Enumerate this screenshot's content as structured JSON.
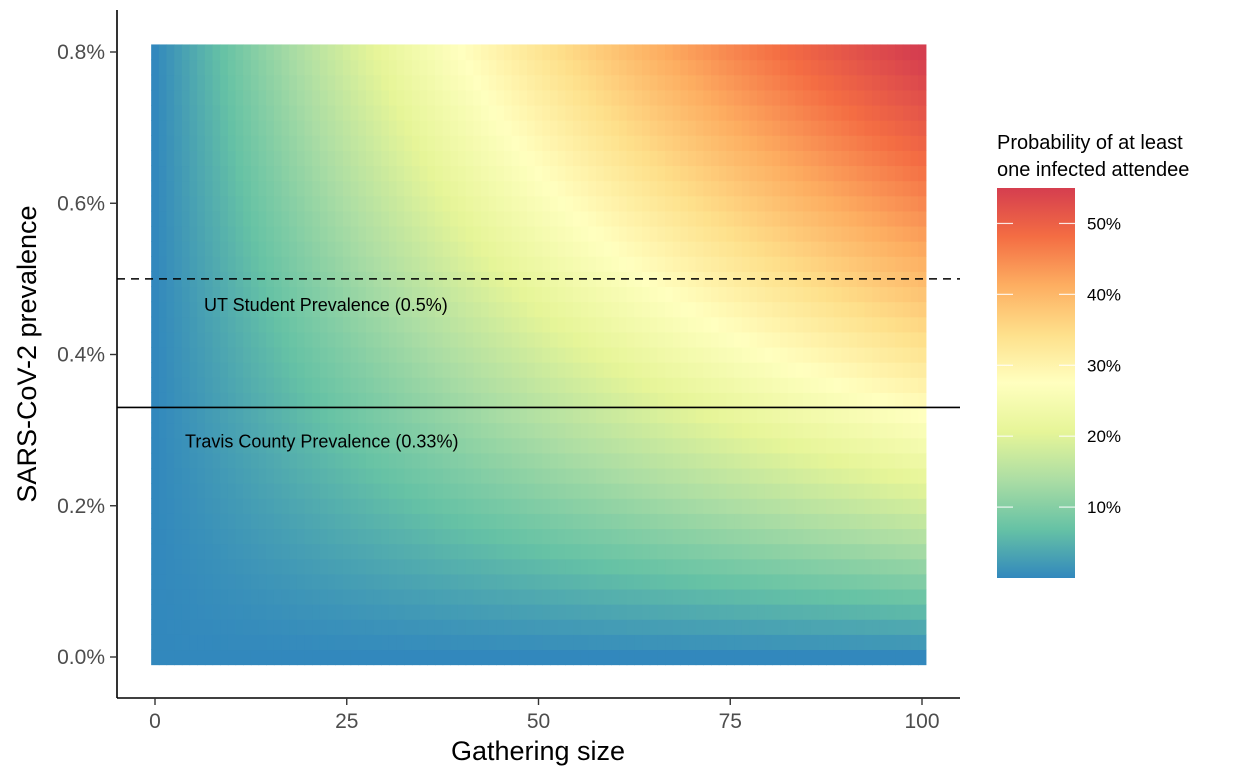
{
  "chart_data": {
    "type": "heatmap",
    "title": "",
    "xlabel": "Gathering size",
    "ylabel": "SARS-CoV-2 prevalence",
    "x_range": [
      0,
      100
    ],
    "y_range": [
      0,
      0.8
    ],
    "x_ticks": [
      {
        "value": 0,
        "label": "0"
      },
      {
        "value": 25,
        "label": "25"
      },
      {
        "value": 50,
        "label": "50"
      },
      {
        "value": 75,
        "label": "75"
      },
      {
        "value": 100,
        "label": "100"
      }
    ],
    "y_ticks": [
      {
        "value": 0.0,
        "label": "0.0%"
      },
      {
        "value": 0.2,
        "label": "0.2%"
      },
      {
        "value": 0.4,
        "label": "0.4%"
      },
      {
        "value": 0.6,
        "label": "0.6%"
      },
      {
        "value": 0.8,
        "label": "0.8%"
      }
    ],
    "z_formula": "1 - (1 - prevalence/100)^gathering_size",
    "grid": false,
    "colorscale": [
      "#3288bd",
      "#66c2a5",
      "#abdda4",
      "#e6f598",
      "#ffffbf",
      "#fee08b",
      "#fdae61",
      "#f46d43",
      "#d53e4f"
    ],
    "color_range": [
      0,
      0.55
    ],
    "legend": {
      "title_line1": "Probability of at least",
      "title_line2": "one infected attendee",
      "position": "right",
      "ticks": [
        {
          "value": 0.1,
          "label": "10%"
        },
        {
          "value": 0.2,
          "label": "20%"
        },
        {
          "value": 0.3,
          "label": "30%"
        },
        {
          "value": 0.4,
          "label": "40%"
        },
        {
          "value": 0.5,
          "label": "50%"
        }
      ]
    },
    "reference_lines": [
      {
        "y": 0.5,
        "style": "dashed",
        "label": "UT Student Prevalence (0.5%)"
      },
      {
        "y": 0.33,
        "style": "solid",
        "label": "Travis County Prevalence (0.33%)"
      }
    ]
  }
}
